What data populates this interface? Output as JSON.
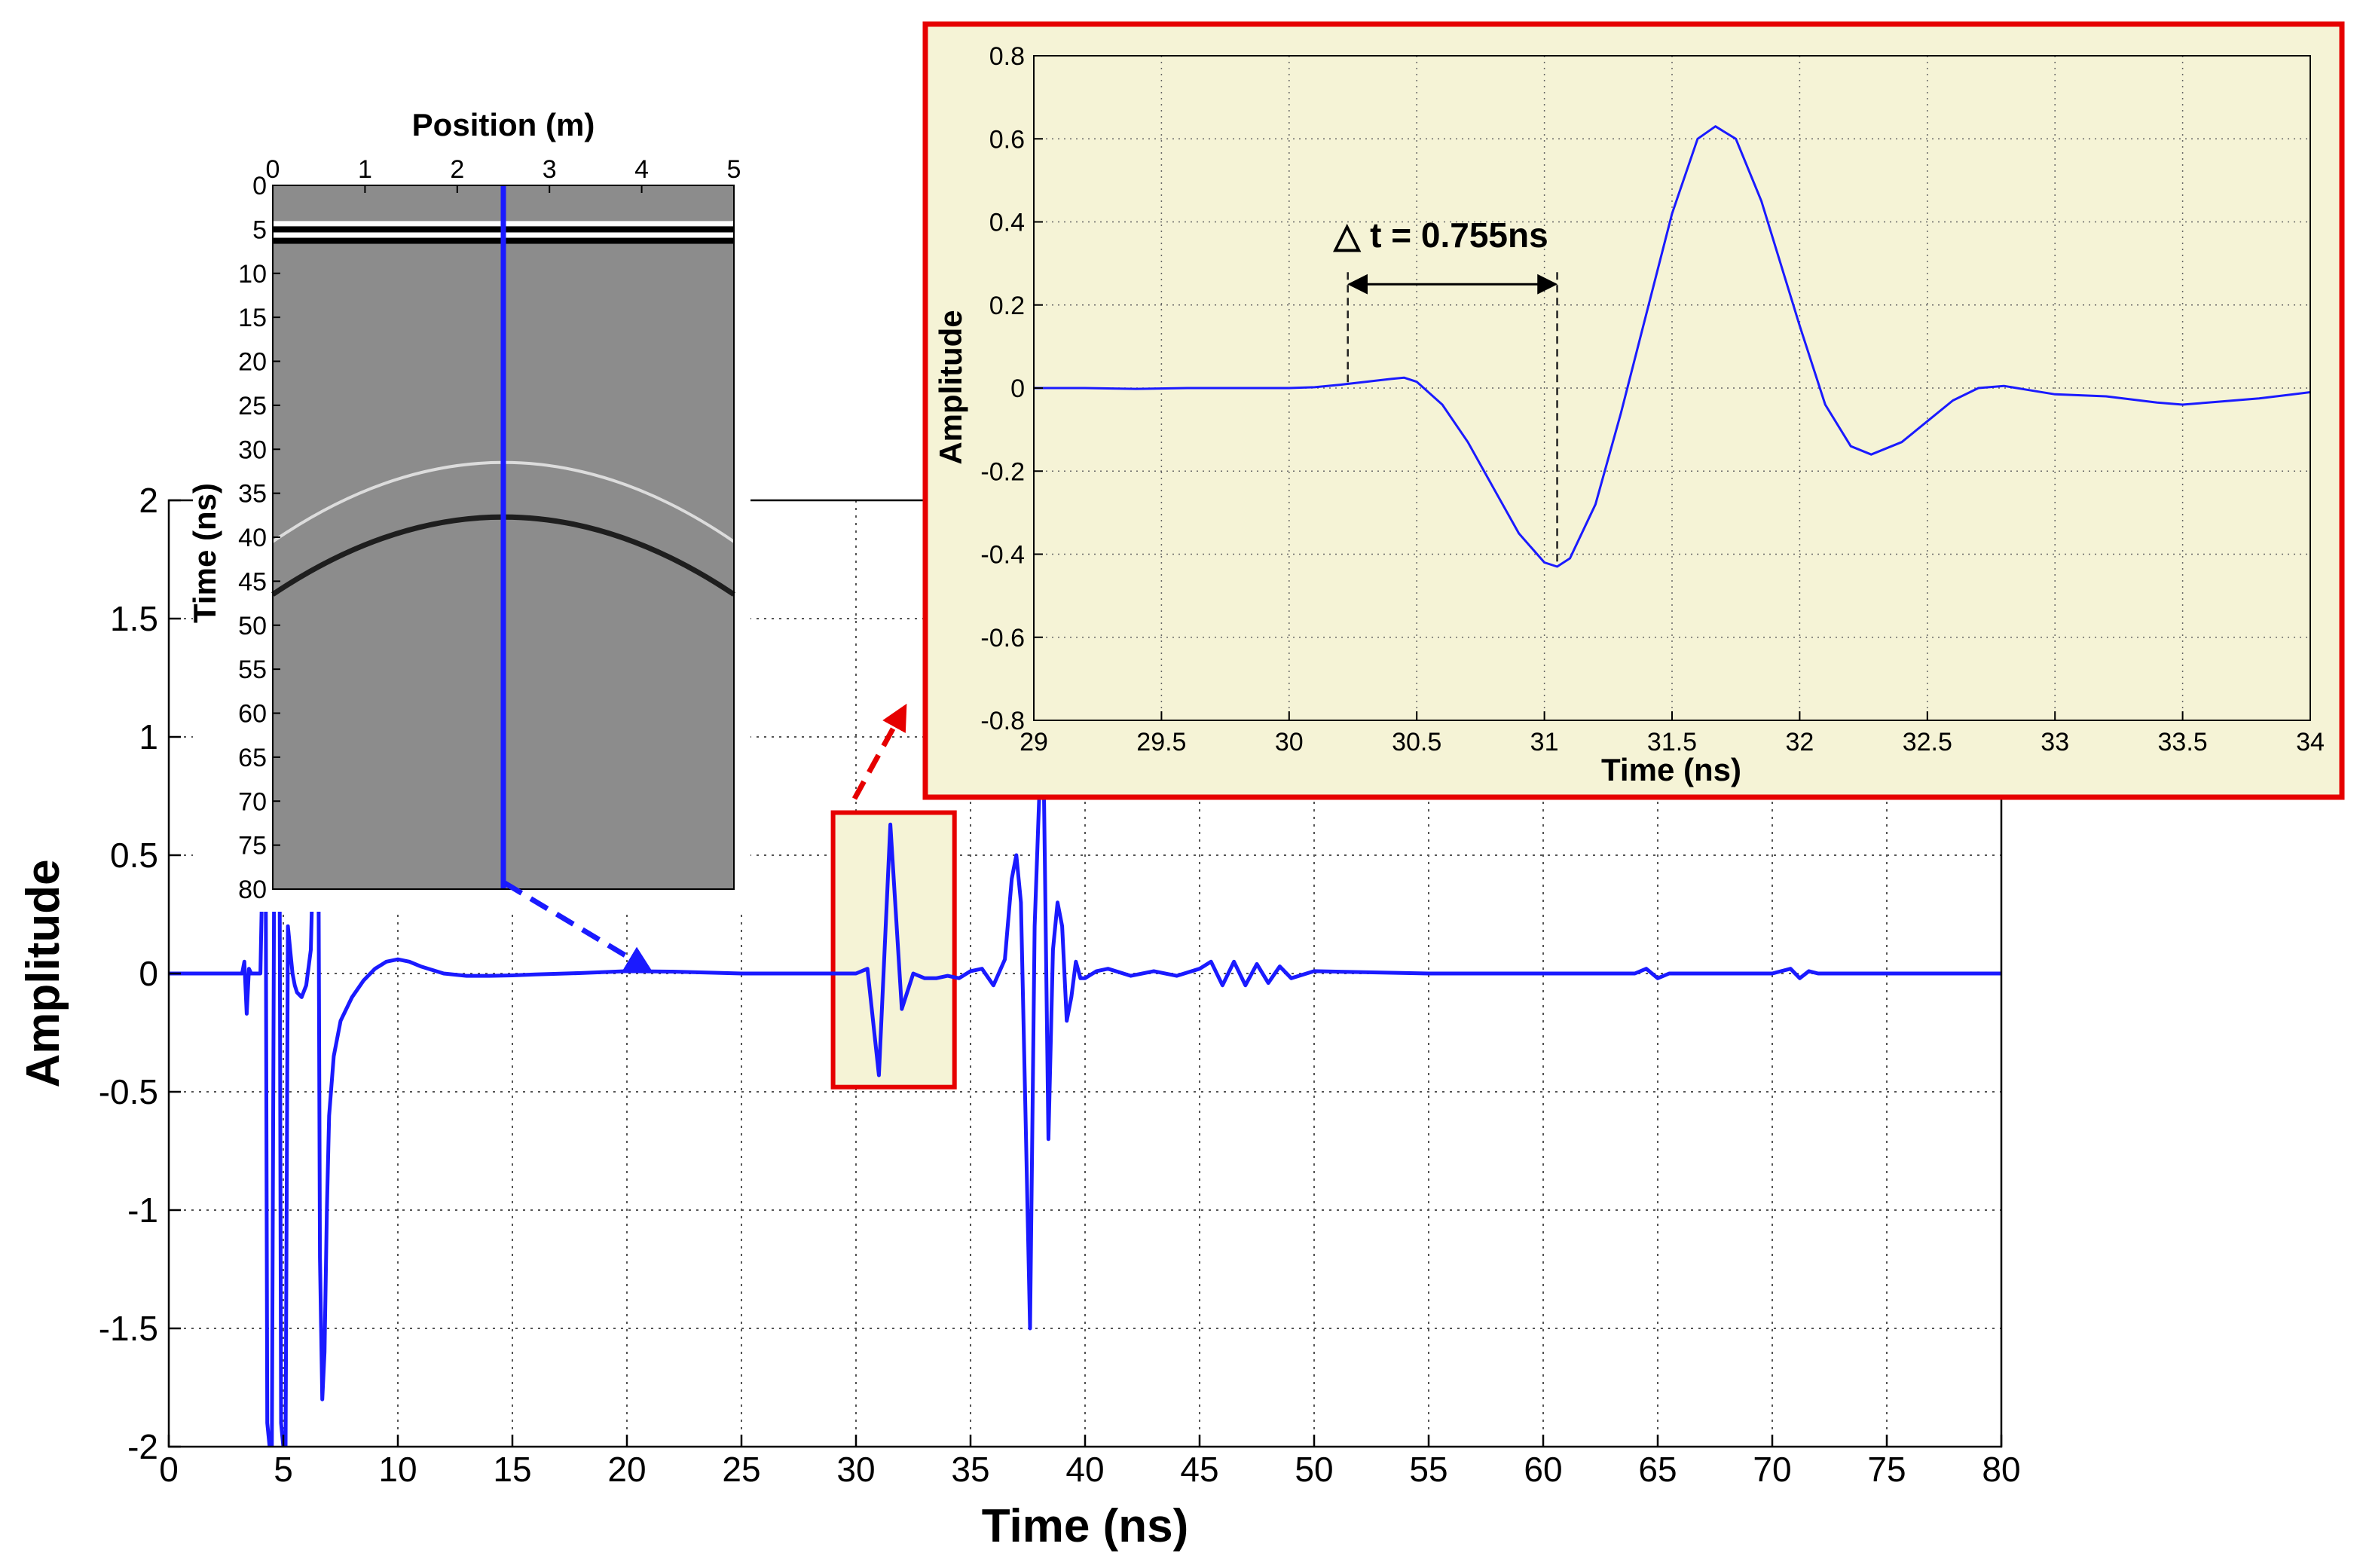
{
  "chart_data": [
    {
      "id": "main",
      "type": "line",
      "xlabel": "Time (ns)",
      "ylabel": "Amplitude",
      "xlim": [
        0,
        80
      ],
      "ylim": [
        -2,
        2
      ],
      "xticks": [
        0,
        5,
        10,
        15,
        20,
        25,
        30,
        35,
        40,
        45,
        50,
        55,
        60,
        65,
        70,
        75,
        80
      ],
      "yticks": [
        -2,
        -1.5,
        -1,
        -0.5,
        0,
        0.5,
        1,
        1.5,
        2
      ],
      "grid": true,
      "series_color": "#1a1aff",
      "highlight_box": {
        "x": [
          29,
          34.3
        ],
        "y": [
          -0.48,
          0.68
        ],
        "border_color": "#e60000",
        "fill_color": "#f5f3d6"
      },
      "series": [
        {
          "x": [
            0,
            3.2,
            3.3,
            3.4,
            3.5,
            3.6,
            4.0,
            4.1,
            4.2,
            4.3,
            4.4,
            4.5,
            4.6,
            4.7,
            4.8,
            4.9,
            5.0,
            5.1,
            5.2,
            5.3,
            5.4,
            5.5,
            5.6,
            5.8,
            6.0,
            6.2,
            6.4,
            6.5,
            6.6,
            6.7,
            6.8,
            6.9,
            7.0,
            7.2,
            7.5,
            8.0,
            8.5,
            9.0,
            9.5,
            10.0,
            10.5,
            11.0,
            12.0,
            13.0,
            14.0,
            15.0,
            16.0,
            18.0,
            20.0,
            22.0,
            25.0,
            28.0,
            29.5,
            30.0,
            30.5,
            31.0,
            31.5,
            32.0,
            32.5,
            33.0,
            33.5,
            34.0,
            34.5,
            35.0,
            35.5,
            36.0,
            36.5,
            36.8,
            37.0,
            37.2,
            37.4,
            37.6,
            37.8,
            38.0,
            38.2,
            38.4,
            38.6,
            38.8,
            39.0,
            39.2,
            39.4,
            39.6,
            39.8,
            40.0,
            40.5,
            41.0,
            42.0,
            43.0,
            44.0,
            45.0,
            45.5,
            46.0,
            46.5,
            47.0,
            47.5,
            48.0,
            48.5,
            49.0,
            50.0,
            55.0,
            60.0,
            64.0,
            64.5,
            65.0,
            65.5,
            66.0,
            70.0,
            70.8,
            71.2,
            71.6,
            72.0,
            75.0,
            80.0
          ],
          "y": [
            0,
            0,
            0.05,
            -0.17,
            0.02,
            0,
            0,
            0.5,
            1.5,
            -1.9,
            -2.0,
            -2.0,
            0.4,
            0.8,
            1.9,
            -1.9,
            -2.0,
            -2.0,
            0.2,
            0.1,
            0.0,
            -0.05,
            -0.08,
            -0.1,
            -0.05,
            0.1,
            0.9,
            1.4,
            -1.2,
            -1.8,
            -1.6,
            -1.0,
            -0.6,
            -0.35,
            -0.2,
            -0.1,
            -0.03,
            0.02,
            0.05,
            0.06,
            0.05,
            0.03,
            0.0,
            -0.01,
            -0.01,
            -0.008,
            -0.004,
            0.002,
            0.01,
            0.008,
            0.0,
            0.0,
            0.0,
            0.0,
            0.02,
            -0.43,
            0.63,
            -0.15,
            0.0,
            -0.02,
            -0.02,
            -0.01,
            -0.02,
            0.01,
            0.02,
            -0.05,
            0.06,
            0.4,
            0.5,
            0.3,
            -0.6,
            -1.5,
            0.2,
            0.75,
            0.8,
            -0.7,
            0.1,
            0.3,
            0.2,
            -0.2,
            -0.1,
            0.05,
            -0.02,
            -0.02,
            0.01,
            0.02,
            -0.01,
            0.01,
            -0.01,
            0.02,
            0.05,
            -0.05,
            0.05,
            -0.05,
            0.04,
            -0.04,
            0.03,
            -0.02,
            0.01,
            0.0,
            0.0,
            0.0,
            0.02,
            -0.02,
            0.0,
            0.0,
            0.0,
            0.02,
            -0.02,
            0.01,
            0.0,
            0.0,
            0.0
          ]
        }
      ]
    },
    {
      "id": "zoom",
      "type": "line",
      "xlabel": "Time (ns)",
      "ylabel": "Amplitude",
      "xlim": [
        29,
        34
      ],
      "ylim": [
        -0.8,
        0.8
      ],
      "xticks": [
        29,
        29.5,
        30,
        30.5,
        31,
        31.5,
        32,
        32.5,
        33,
        33.5,
        34
      ],
      "yticks": [
        -0.8,
        -0.6,
        -0.4,
        -0.2,
        0,
        0.2,
        0.4,
        0.6,
        0.8
      ],
      "grid": true,
      "background": "#f5f3d6",
      "border_color": "#e60000",
      "series_color": "#1a1aff",
      "annotation": {
        "text": "△ t = 0.755ns",
        "x_start": 30.23,
        "x_end": 31.05,
        "y_arrow": 0.25
      },
      "series": [
        {
          "x": [
            29.0,
            29.2,
            29.4,
            29.6,
            29.8,
            30.0,
            30.1,
            30.2,
            30.3,
            30.4,
            30.45,
            30.5,
            30.6,
            30.7,
            30.8,
            30.9,
            31.0,
            31.05,
            31.1,
            31.2,
            31.3,
            31.4,
            31.5,
            31.6,
            31.67,
            31.75,
            31.85,
            32.0,
            32.1,
            32.2,
            32.28,
            32.4,
            32.5,
            32.6,
            32.7,
            32.8,
            32.9,
            33.0,
            33.2,
            33.4,
            33.5,
            33.6,
            33.8,
            34.0
          ],
          "y": [
            0.0,
            0.0,
            -0.002,
            0.0,
            0.0,
            0.0,
            0.002,
            0.008,
            0.015,
            0.022,
            0.025,
            0.015,
            -0.04,
            -0.13,
            -0.24,
            -0.35,
            -0.42,
            -0.43,
            -0.41,
            -0.28,
            -0.06,
            0.18,
            0.42,
            0.6,
            0.63,
            0.6,
            0.45,
            0.15,
            -0.04,
            -0.14,
            -0.16,
            -0.13,
            -0.08,
            -0.03,
            0.0,
            0.005,
            -0.005,
            -0.015,
            -0.02,
            -0.035,
            -0.04,
            -0.035,
            -0.025,
            -0.01
          ]
        }
      ]
    },
    {
      "id": "radargram",
      "type": "heatmap",
      "xlabel": "Position (m)",
      "ylabel": "Time (ns)",
      "xlim": [
        0,
        5
      ],
      "ylim": [
        0,
        80
      ],
      "xticks": [
        0,
        1,
        2,
        3,
        4,
        5
      ],
      "yticks": [
        0,
        5,
        10,
        15,
        20,
        25,
        30,
        35,
        40,
        45,
        50,
        55,
        60,
        65,
        70,
        75,
        80
      ],
      "trace_position": 2.5,
      "trace_color": "#1a1aff",
      "reflectors": [
        {
          "type": "horizontal",
          "time": 4.4,
          "tone": "white"
        },
        {
          "type": "horizontal",
          "time": 5.0,
          "tone": "black"
        },
        {
          "type": "horizontal",
          "time": 5.7,
          "tone": "white"
        },
        {
          "type": "horizontal",
          "time": 6.3,
          "tone": "black"
        },
        {
          "type": "hyperbola",
          "apex_position": 2.5,
          "apex_time": 31.5,
          "edge_time": 40.5,
          "tone": "light"
        },
        {
          "type": "hyperbola",
          "apex_position": 2.5,
          "apex_time": 37.7,
          "edge_time": 46.5,
          "tone": "dark"
        }
      ]
    }
  ]
}
